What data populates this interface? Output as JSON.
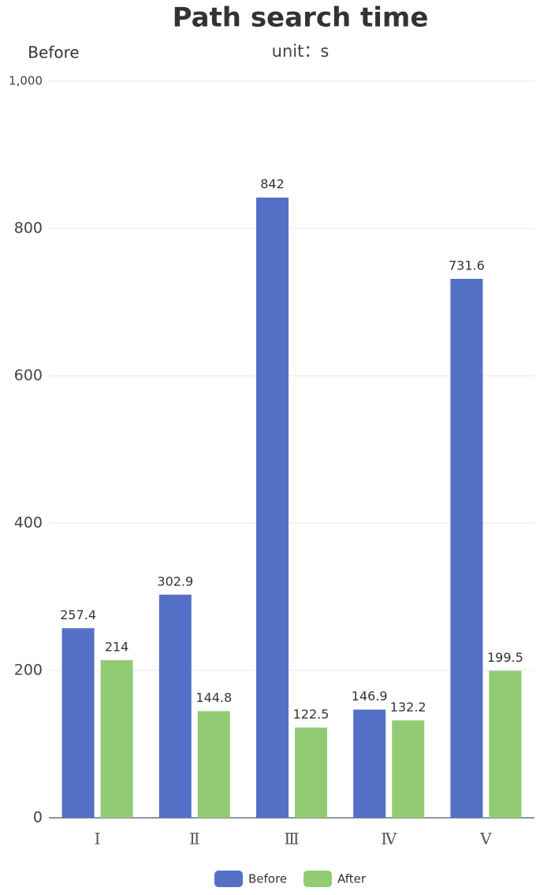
{
  "chart_data": {
    "type": "bar",
    "title": "Path search time",
    "subtitle": "unit：s",
    "y_label": "Before",
    "categories": [
      "Ⅰ",
      "Ⅱ",
      "Ⅲ",
      "Ⅳ",
      "Ⅴ"
    ],
    "series": [
      {
        "name": "Before",
        "color": "#5470c6",
        "values": [
          257.4,
          302.9,
          842,
          146.9,
          731.6
        ]
      },
      {
        "name": "After",
        "color": "#91cc75",
        "values": [
          214,
          144.8,
          122.5,
          132.2,
          199.5
        ]
      }
    ],
    "ylim": [
      0,
      1000
    ],
    "yticks": [
      0,
      200,
      400,
      600,
      800,
      {
        "value": 1000,
        "label": "1,000"
      }
    ],
    "grid": true
  }
}
